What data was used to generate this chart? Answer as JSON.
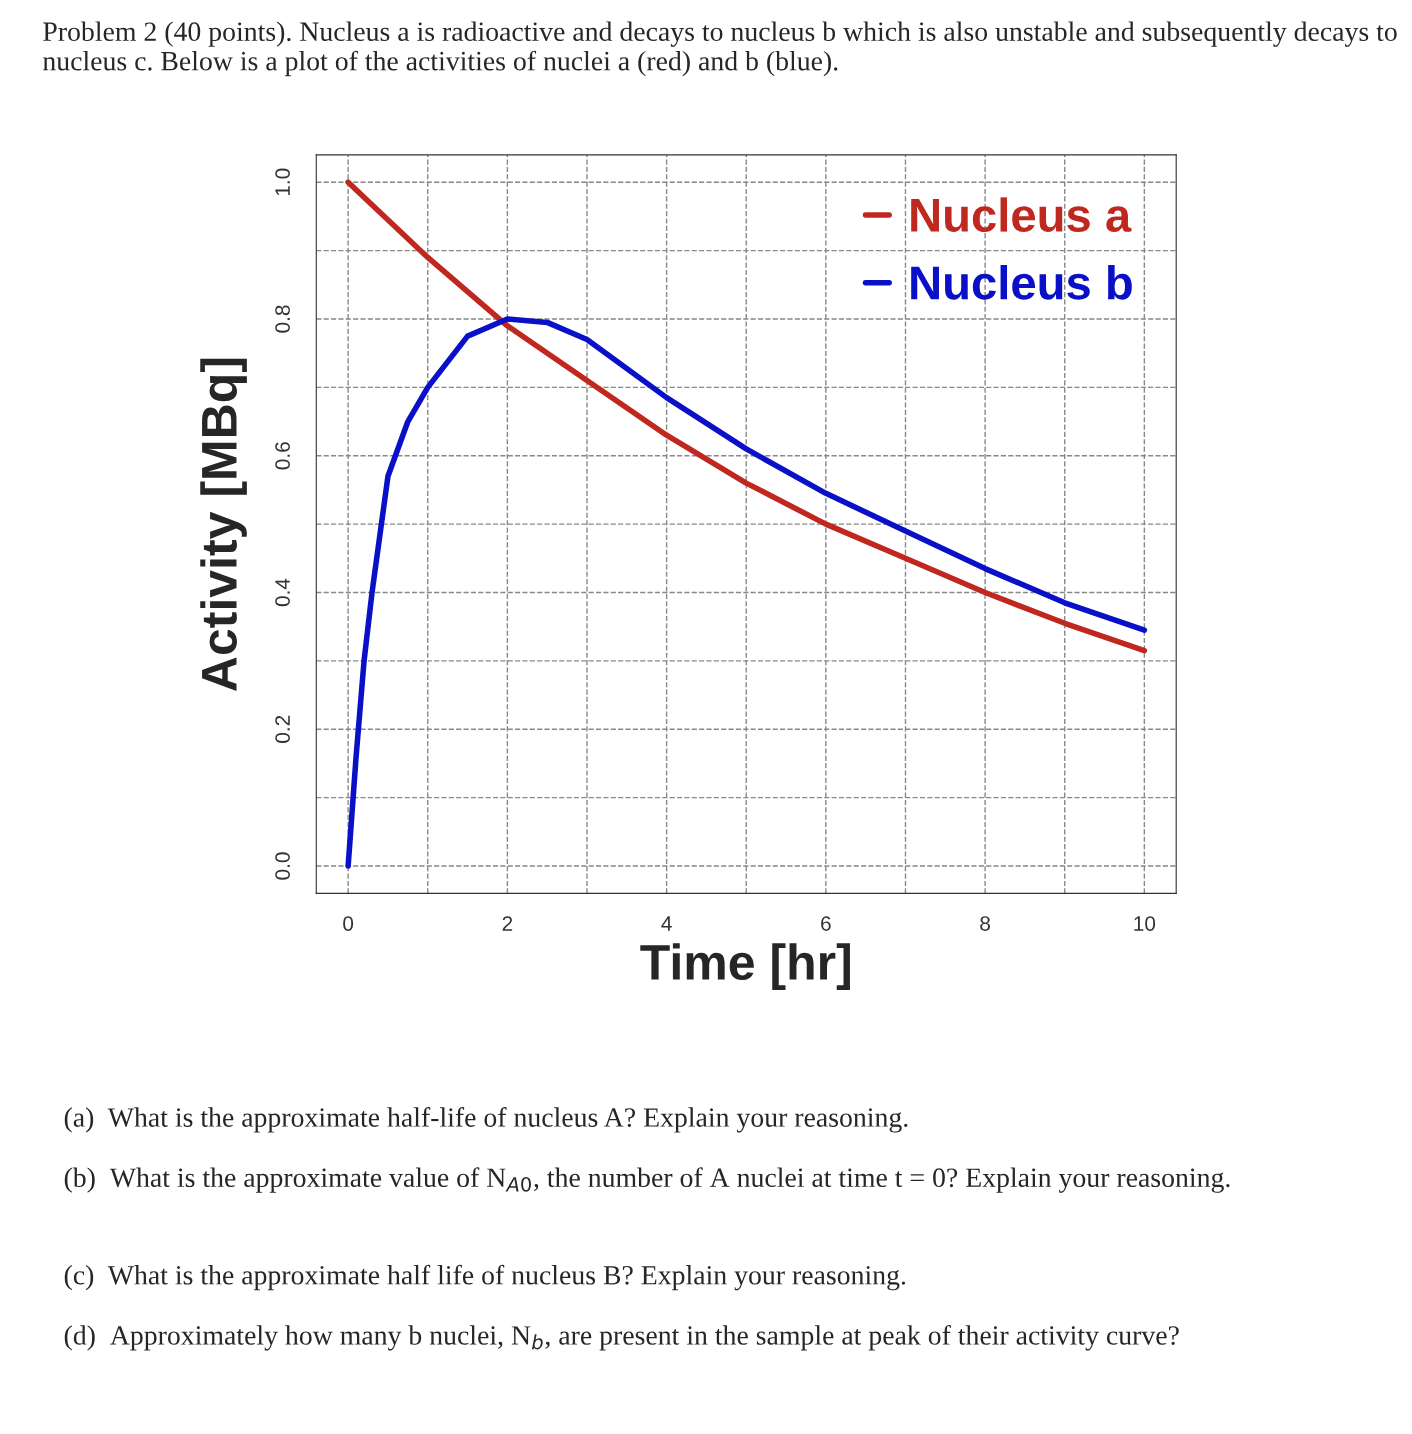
{
  "chart_data": {
    "type": "line",
    "title": "Problem 2 (40 points). Nucleus a is radioactive and decays to nucleus b which is also unstable and subsequently decays to nucleus c. Below is a plot of the activities of nuclei a (red) and b (blue).",
    "xlabel": "Time [hr]",
    "ylabel": "Activity [MBq]",
    "series": [
      {
        "name": "Nucleus a",
        "color": "#c0281f",
        "x": [
          0,
          1,
          2,
          3,
          4,
          5,
          6,
          7,
          8,
          9,
          10
        ],
        "values": [
          1.0,
          0.89,
          0.79,
          0.71,
          0.63,
          0.56,
          0.5,
          0.45,
          0.4,
          0.355,
          0.315
        ]
      },
      {
        "name": "Nucleus b",
        "color": "#0a10c8",
        "x": [
          0,
          0.1,
          0.2,
          0.3,
          0.5,
          0.75,
          1,
          1.5,
          2,
          2.5,
          3,
          4,
          5,
          6,
          7,
          8,
          9,
          10
        ],
        "values": [
          0,
          0.16,
          0.3,
          0.4,
          0.57,
          0.65,
          0.7,
          0.775,
          0.8,
          0.795,
          0.77,
          0.685,
          0.61,
          0.545,
          0.49,
          0.435,
          0.385,
          0.345
        ]
      }
    ],
    "xlim": [
      -0.4,
      10.4
    ],
    "ylim": [
      -0.04,
      1.04
    ],
    "xticks": [
      0,
      {
        "value": 1,
        "label": null
      },
      2,
      {
        "value": 3,
        "label": null
      },
      4,
      {
        "value": 5,
        "label": null
      },
      6,
      {
        "value": 7,
        "label": null
      },
      8,
      {
        "value": 9,
        "label": null
      },
      10
    ],
    "yticks": [
      {
        "value": 0,
        "label": "0.0"
      },
      {
        "value": 0.1,
        "label": null
      },
      {
        "value": 0.2,
        "label": "0.2"
      },
      {
        "value": 0.3,
        "label": null
      },
      {
        "value": 0.4,
        "label": "0.4"
      },
      {
        "value": 0.5,
        "label": null
      },
      {
        "value": 0.6,
        "label": "0.6"
      },
      {
        "value": 0.7,
        "label": null
      },
      {
        "value": 0.8,
        "label": "0.8"
      },
      {
        "value": 0.9,
        "label": null
      },
      {
        "value": 1.0,
        "label": "1.0"
      }
    ],
    "grid": true,
    "legend": "top right",
    "line_style": "solid",
    "marker": "none",
    "annotations": [
      "(a)  What is the approximate half-life of nucleus A? Explain your reasoning.",
      "(b)  What is the approximate value of N$_{A0}$, the number of A nuclei at time t = 0? Explain your reasoning.",
      "(c)  What is the approximate half life of nucleus B? Explain your reasoning.",
      "(d)  Approximately how many b nuclei, N$_{b}$, are present in the sample at peak of their activity curve?"
    ]
  }
}
